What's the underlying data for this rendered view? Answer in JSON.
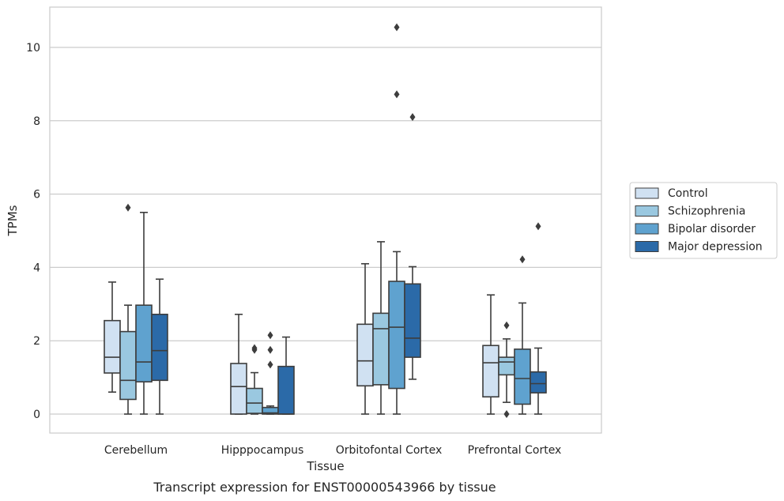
{
  "chart_data": {
    "type": "box",
    "xlabel": "Tissue",
    "ylabel": "TPMs",
    "caption": "Transcript expression for ENST00000543966 by tissue",
    "ylim": [
      -0.5,
      11.1
    ],
    "yticks": [
      0,
      2,
      4,
      6,
      8,
      10
    ],
    "yticklabels": [
      "0",
      "2",
      "4",
      "6",
      "8",
      "10"
    ],
    "grid": "horizontal",
    "legend_position": "right",
    "categories": [
      "Cerebellum",
      "Hipppocampus",
      "Orbitofontal Cortex",
      "Prefrontal Cortex"
    ],
    "series": [
      {
        "name": "Control",
        "color": "#d0e1f2",
        "boxes": [
          {
            "whislo": 0.6,
            "q1": 1.12,
            "med": 1.55,
            "q3": 2.55,
            "whishi": 3.6,
            "fliers": []
          },
          {
            "whislo": 0.0,
            "q1": 0.0,
            "med": 0.75,
            "q3": 1.38,
            "whishi": 2.72,
            "fliers": []
          },
          {
            "whislo": 0.0,
            "q1": 0.77,
            "med": 1.45,
            "q3": 2.45,
            "whishi": 4.1,
            "fliers": []
          },
          {
            "whislo": 0.0,
            "q1": 0.47,
            "med": 1.4,
            "q3": 1.87,
            "whishi": 3.25,
            "fliers": []
          }
        ]
      },
      {
        "name": "Schizophrenia",
        "color": "#9ac8e0",
        "boxes": [
          {
            "whislo": 0.0,
            "q1": 0.4,
            "med": 0.92,
            "q3": 2.25,
            "whishi": 2.97,
            "fliers": [
              5.63
            ]
          },
          {
            "whislo": 0.0,
            "q1": 0.02,
            "med": 0.3,
            "q3": 0.7,
            "whishi": 1.13,
            "fliers": [
              1.75,
              1.8
            ]
          },
          {
            "whislo": 0.0,
            "q1": 0.8,
            "med": 2.33,
            "q3": 2.75,
            "whishi": 4.7,
            "fliers": []
          },
          {
            "whislo": 0.32,
            "q1": 1.07,
            "med": 1.42,
            "q3": 1.55,
            "whishi": 2.05,
            "fliers": [
              2.42,
              0.0
            ]
          }
        ]
      },
      {
        "name": "Bipolar disorder",
        "color": "#5fa2cf",
        "boxes": [
          {
            "whislo": 0.0,
            "q1": 0.88,
            "med": 1.42,
            "q3": 2.97,
            "whishi": 5.5,
            "fliers": []
          },
          {
            "whislo": 0.0,
            "q1": 0.0,
            "med": 0.03,
            "q3": 0.18,
            "whishi": 0.22,
            "fliers": [
              2.15,
              1.75,
              1.35
            ]
          },
          {
            "whislo": 0.0,
            "q1": 0.7,
            "med": 2.37,
            "q3": 3.62,
            "whishi": 4.43,
            "fliers": [
              10.55,
              8.72
            ]
          },
          {
            "whislo": 0.0,
            "q1": 0.27,
            "med": 0.97,
            "q3": 1.77,
            "whishi": 3.03,
            "fliers": [
              4.22
            ]
          }
        ]
      },
      {
        "name": "Major depression",
        "color": "#2b6aa8",
        "boxes": [
          {
            "whislo": 0.0,
            "q1": 0.92,
            "med": 1.73,
            "q3": 2.72,
            "whishi": 3.68,
            "fliers": []
          },
          {
            "whislo": 0.0,
            "q1": 0.0,
            "med": 0.0,
            "q3": 1.3,
            "whishi": 2.1,
            "fliers": []
          },
          {
            "whislo": 0.95,
            "q1": 1.55,
            "med": 2.07,
            "q3": 3.55,
            "whishi": 4.02,
            "fliers": [
              8.1
            ]
          },
          {
            "whislo": 0.0,
            "q1": 0.58,
            "med": 0.83,
            "q3": 1.15,
            "whishi": 1.8,
            "fliers": [
              5.12
            ]
          }
        ]
      }
    ]
  }
}
